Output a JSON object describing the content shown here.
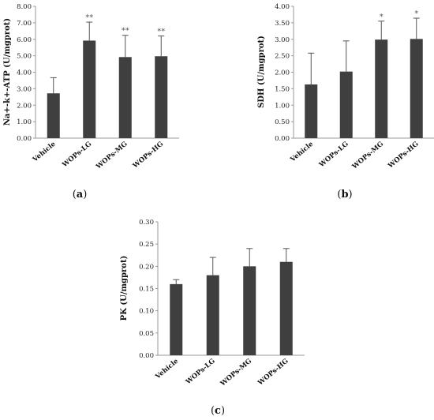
{
  "chart_data": [
    {
      "panel": "a",
      "type": "bar",
      "ylabel": "Na+-k+-ATP (U/mgprot)",
      "ylim": [
        0,
        8
      ],
      "yticks": [
        "0.00",
        "1.00",
        "2.00",
        "3.00",
        "4.00",
        "5.00",
        "6.00",
        "7.00",
        "8.00"
      ],
      "categories": [
        "Vehicle",
        "WOPs-LG",
        "WOPs-MG",
        "WOPs-HG"
      ],
      "values": [
        2.72,
        5.92,
        4.92,
        4.97
      ],
      "errors": [
        0.95,
        1.12,
        1.32,
        1.23
      ],
      "annotations": [
        "",
        "**",
        "**",
        "**"
      ],
      "bar_color": "#3f3f3f"
    },
    {
      "panel": "b",
      "type": "bar",
      "ylabel": "SDH (U/mgprot)",
      "ylim": [
        0,
        4
      ],
      "yticks": [
        "0.00",
        "0.50",
        "1.00",
        "1.50",
        "2.00",
        "2.50",
        "3.00",
        "3.50",
        "4.00"
      ],
      "categories": [
        "Vehicle",
        "WOPs-LG",
        "WOPs-MG",
        "WOPs-HG"
      ],
      "values": [
        1.63,
        2.02,
        2.99,
        3.01
      ],
      "errors": [
        0.95,
        0.93,
        0.56,
        0.63
      ],
      "annotations": [
        "",
        "",
        "*",
        "*"
      ],
      "bar_color": "#3f3f3f"
    },
    {
      "panel": "c",
      "type": "bar",
      "ylabel": "PK (U/mgprot)",
      "ylim": [
        0,
        0.3
      ],
      "yticks": [
        "0.00",
        "0.05",
        "0.10",
        "0.15",
        "0.20",
        "0.25",
        "0.30"
      ],
      "categories": [
        "Vehicle",
        "WOPs-LG",
        "WOPs-MG",
        "WOPs-HG"
      ],
      "values": [
        0.16,
        0.18,
        0.2,
        0.21
      ],
      "errors": [
        0.01,
        0.04,
        0.04,
        0.03
      ],
      "annotations": [
        "",
        "",
        "",
        ""
      ],
      "bar_color": "#3f3f3f"
    }
  ],
  "panel_labels": [
    "a",
    "b",
    "c"
  ]
}
